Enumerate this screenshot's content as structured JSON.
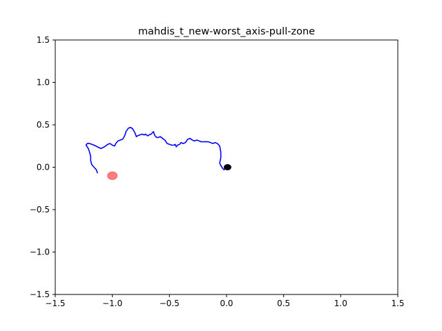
{
  "chart_data": {
    "type": "line",
    "title": "mahdis_t_new-worst_axis-pull-zone",
    "xlabel": "",
    "ylabel": "",
    "xlim": [
      -1.5,
      1.5
    ],
    "ylim": [
      -1.5,
      1.5
    ],
    "x_ticks": [
      -1.5,
      -1.0,
      -0.5,
      0.0,
      0.5,
      1.0,
      1.5
    ],
    "y_ticks": [
      -1.5,
      -1.0,
      -0.5,
      0.0,
      0.5,
      1.0,
      1.5
    ],
    "x_tick_labels": [
      "−1.5",
      "−1.0",
      "−0.5",
      "0.0",
      "0.5",
      "1.0",
      "1.5"
    ],
    "y_tick_labels": [
      "−1.5",
      "−1.0",
      "−0.5",
      "0.0",
      "0.5",
      "1.0",
      "1.5"
    ],
    "grid": false,
    "legend": "none",
    "colors": {
      "trajectory": "#0000ff",
      "target": "#ff0000",
      "agent": "#000000"
    },
    "series": [
      {
        "kind": "line",
        "x": [
          -1.13,
          -1.14,
          -1.16,
          -1.18,
          -1.19,
          -1.19,
          -1.2,
          -1.21,
          -1.23,
          -1.22,
          -1.2,
          -1.18,
          -1.16,
          -1.13,
          -1.1,
          -1.07,
          -1.04,
          -1.02,
          -1.0,
          -0.98,
          -0.97,
          -0.95,
          -0.93,
          -0.91,
          -0.9,
          -0.89,
          -0.88,
          -0.86,
          -0.84,
          -0.82,
          -0.8,
          -0.79,
          -0.78,
          -0.76,
          -0.74,
          -0.72,
          -0.71,
          -0.7,
          -0.69,
          -0.68,
          -0.66,
          -0.64,
          -0.63,
          -0.62,
          -0.61,
          -0.6,
          -0.58,
          -0.56,
          -0.54,
          -0.52,
          -0.5,
          -0.48,
          -0.46,
          -0.45,
          -0.44,
          -0.43,
          -0.41,
          -0.4,
          -0.38,
          -0.36,
          -0.34,
          -0.32,
          -0.3,
          -0.28,
          -0.26,
          -0.24,
          -0.22,
          -0.2,
          -0.18,
          -0.16,
          -0.14,
          -0.12,
          -0.1,
          -0.08,
          -0.06,
          -0.05,
          -0.05,
          -0.06,
          -0.05,
          -0.04,
          -0.03,
          -0.02,
          -0.01,
          0.0
        ],
        "y": [
          -0.07,
          -0.03,
          0.0,
          0.03,
          0.08,
          0.13,
          0.18,
          0.22,
          0.26,
          0.28,
          0.28,
          0.27,
          0.26,
          0.24,
          0.22,
          0.24,
          0.27,
          0.28,
          0.26,
          0.25,
          0.28,
          0.31,
          0.32,
          0.33,
          0.35,
          0.38,
          0.42,
          0.46,
          0.47,
          0.45,
          0.4,
          0.36,
          0.37,
          0.38,
          0.39,
          0.38,
          0.39,
          0.38,
          0.37,
          0.38,
          0.39,
          0.42,
          0.38,
          0.36,
          0.35,
          0.35,
          0.36,
          0.34,
          0.32,
          0.28,
          0.27,
          0.26,
          0.26,
          0.27,
          0.24,
          0.26,
          0.27,
          0.29,
          0.28,
          0.29,
          0.33,
          0.34,
          0.32,
          0.31,
          0.32,
          0.31,
          0.3,
          0.3,
          0.3,
          0.3,
          0.29,
          0.28,
          0.29,
          0.28,
          0.25,
          0.18,
          0.11,
          0.05,
          0.02,
          0.0,
          -0.02,
          -0.03,
          0.01,
          0.0
        ]
      },
      {
        "kind": "marker",
        "label": "",
        "x": [
          -1.0
        ],
        "y": [
          -0.1
        ]
      },
      {
        "kind": "marker",
        "label": "",
        "x": [
          0.0
        ],
        "y": [
          0.0
        ]
      }
    ]
  }
}
